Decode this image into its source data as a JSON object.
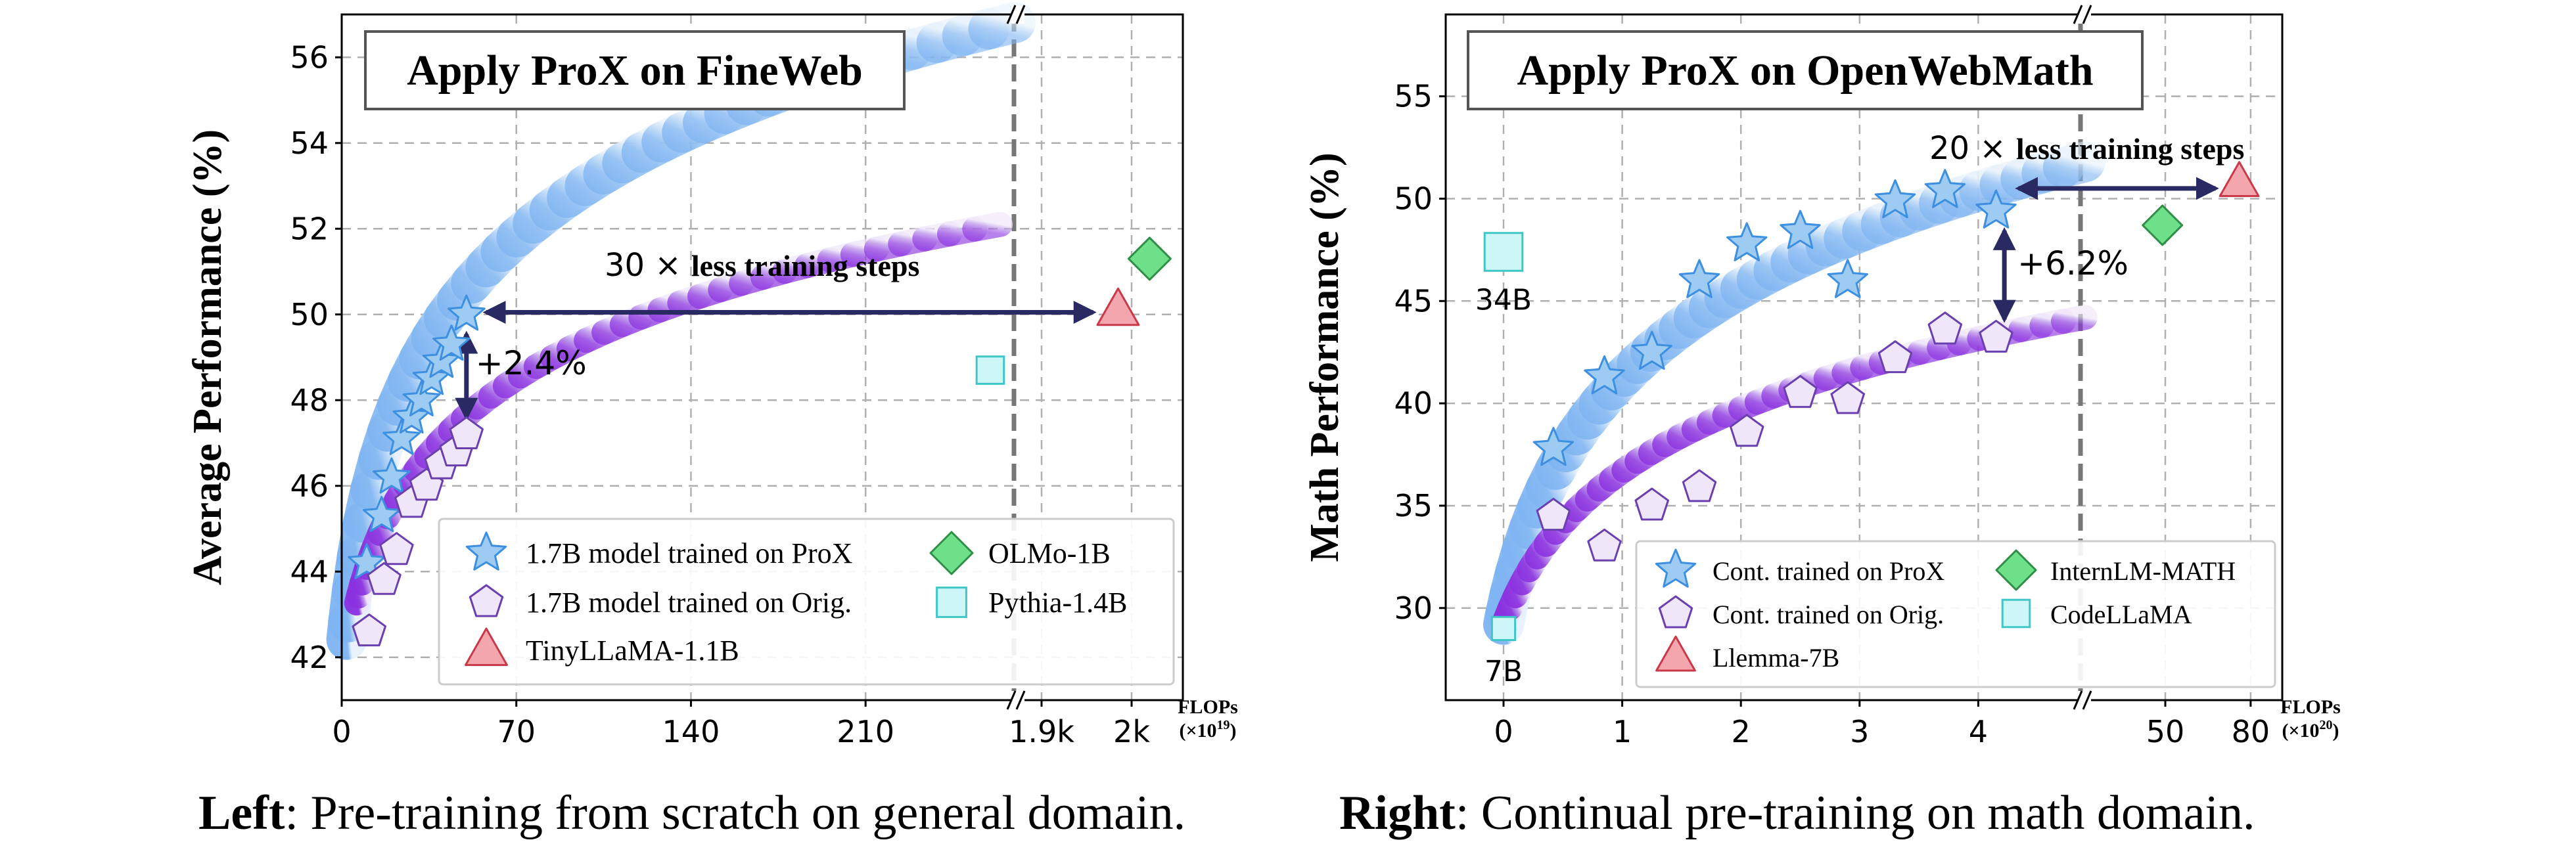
{
  "colors": {
    "prox": "#9ecbf2",
    "prox_edge": "#3d8fe0",
    "orig": "#efe6fa",
    "orig_edge": "#6a3fae",
    "red": "#f4a6ae",
    "red_edge": "#c9394a",
    "green": "#6fe08a",
    "green_edge": "#2f8e47",
    "cyan": "#cdf6f6",
    "cyan_edge": "#3fc6c6",
    "arrow": "#2a2a62",
    "grid": "#b0b0b0"
  },
  "captions": {
    "left_bold": "Left",
    "left_rest": ": Pre-training from scratch on general domain.",
    "right_bold": "Right",
    "right_rest": ": Continual pre-training on math domain."
  },
  "chart_data": [
    {
      "type": "scatter",
      "title": "Apply ProX on FineWeb",
      "ylabel": "Average Performance (%)",
      "xunit_top": "FLOPs",
      "xunit_bottom": "(×10",
      "xunit_exp": "19",
      "ylim": [
        41,
        57
      ],
      "yticks": [
        42,
        44,
        46,
        48,
        50,
        52,
        54,
        56
      ],
      "xticks": [
        {
          "label": "0",
          "value": 0
        },
        {
          "label": "70",
          "value": 70
        },
        {
          "label": "140",
          "value": 140
        },
        {
          "label": "210",
          "value": 210
        },
        {
          "label": "1.9k",
          "value": 1900
        },
        {
          "label": "2k",
          "value": 2000
        }
      ],
      "axis_break": "after 270",
      "grid": true,
      "legend_position": "lower-right",
      "series": [
        {
          "name": "1.7B model trained on ProX",
          "marker": "star",
          "x": [
            10,
            16,
            20,
            24,
            28,
            32,
            36,
            40,
            44,
            50
          ],
          "y": [
            44.2,
            45.3,
            46.2,
            47.1,
            47.6,
            48.0,
            48.5,
            48.9,
            49.3,
            50.0
          ]
        },
        {
          "name": "1.7B model trained on Orig.",
          "marker": "pentagon",
          "x": [
            11,
            17,
            22,
            28,
            34,
            40,
            46,
            50
          ],
          "y": [
            42.6,
            43.8,
            44.5,
            45.6,
            46.0,
            46.5,
            46.8,
            47.2
          ]
        },
        {
          "name": "TinyLLaMA-1.1B",
          "marker": "triangle",
          "x": [
            1985
          ],
          "y": [
            50.1
          ]
        },
        {
          "name": "OLMo-1B",
          "marker": "diamond",
          "x": [
            2020
          ],
          "y": [
            51.3
          ]
        },
        {
          "name": "Pythia-1.4B",
          "marker": "square",
          "x": [
            260
          ],
          "y": [
            48.7
          ]
        }
      ],
      "annotations": {
        "speedup_factor": "30",
        "speedup_times": "×",
        "speedup_text": "less training steps",
        "gain": "+2.4%"
      }
    },
    {
      "type": "scatter",
      "title": "Apply ProX on OpenWebMath",
      "ylabel": "Math Performance (%)",
      "xunit_top": "FLOPs",
      "xunit_bottom": "(×10",
      "xunit_exp": "20",
      "ylim": [
        25.5,
        59
      ],
      "yticks": [
        30,
        35,
        40,
        45,
        50,
        55
      ],
      "xticks": [
        {
          "label": "0",
          "value": 0
        },
        {
          "label": "1",
          "value": 1
        },
        {
          "label": "2",
          "value": 2
        },
        {
          "label": "3",
          "value": 3
        },
        {
          "label": "4",
          "value": 4
        },
        {
          "label": "50",
          "value": 50
        },
        {
          "label": "80",
          "value": 80
        }
      ],
      "axis_break": "after 4.7",
      "grid": true,
      "legend_position": "lower-right",
      "series": [
        {
          "name": "Cont. trained on ProX",
          "marker": "star",
          "x": [
            0.42,
            0.85,
            1.25,
            1.65,
            2.05,
            2.5,
            2.9,
            3.3,
            3.72,
            4.15
          ],
          "y": [
            37.8,
            41.3,
            42.5,
            46.0,
            47.8,
            48.4,
            46.0,
            49.9,
            50.4,
            49.4
          ]
        },
        {
          "name": "Cont. trained on Orig.",
          "marker": "pentagon",
          "x": [
            0.42,
            0.85,
            1.25,
            1.65,
            2.05,
            2.5,
            2.9,
            3.3,
            3.72,
            4.15
          ],
          "y": [
            34.5,
            33.0,
            35.0,
            35.9,
            38.6,
            40.5,
            40.2,
            42.2,
            43.6,
            43.2
          ]
        },
        {
          "name": "Llemma-7B",
          "marker": "triangle",
          "x": [
            76
          ],
          "y": [
            50.8
          ]
        },
        {
          "name": "InternLM-MATH",
          "marker": "diamond",
          "x": [
            49
          ],
          "y": [
            48.7
          ]
        },
        {
          "name": "CodeLLaMA",
          "marker": "square",
          "points": [
            {
              "x": 0,
              "y": 47.4,
              "label": "34B"
            },
            {
              "x": 0,
              "y": 29.0,
              "label": "7B"
            }
          ]
        }
      ],
      "annotations": {
        "speedup_factor": "20",
        "speedup_times": "×",
        "speedup_text": "less training steps",
        "gain": "+6.2%"
      }
    }
  ]
}
